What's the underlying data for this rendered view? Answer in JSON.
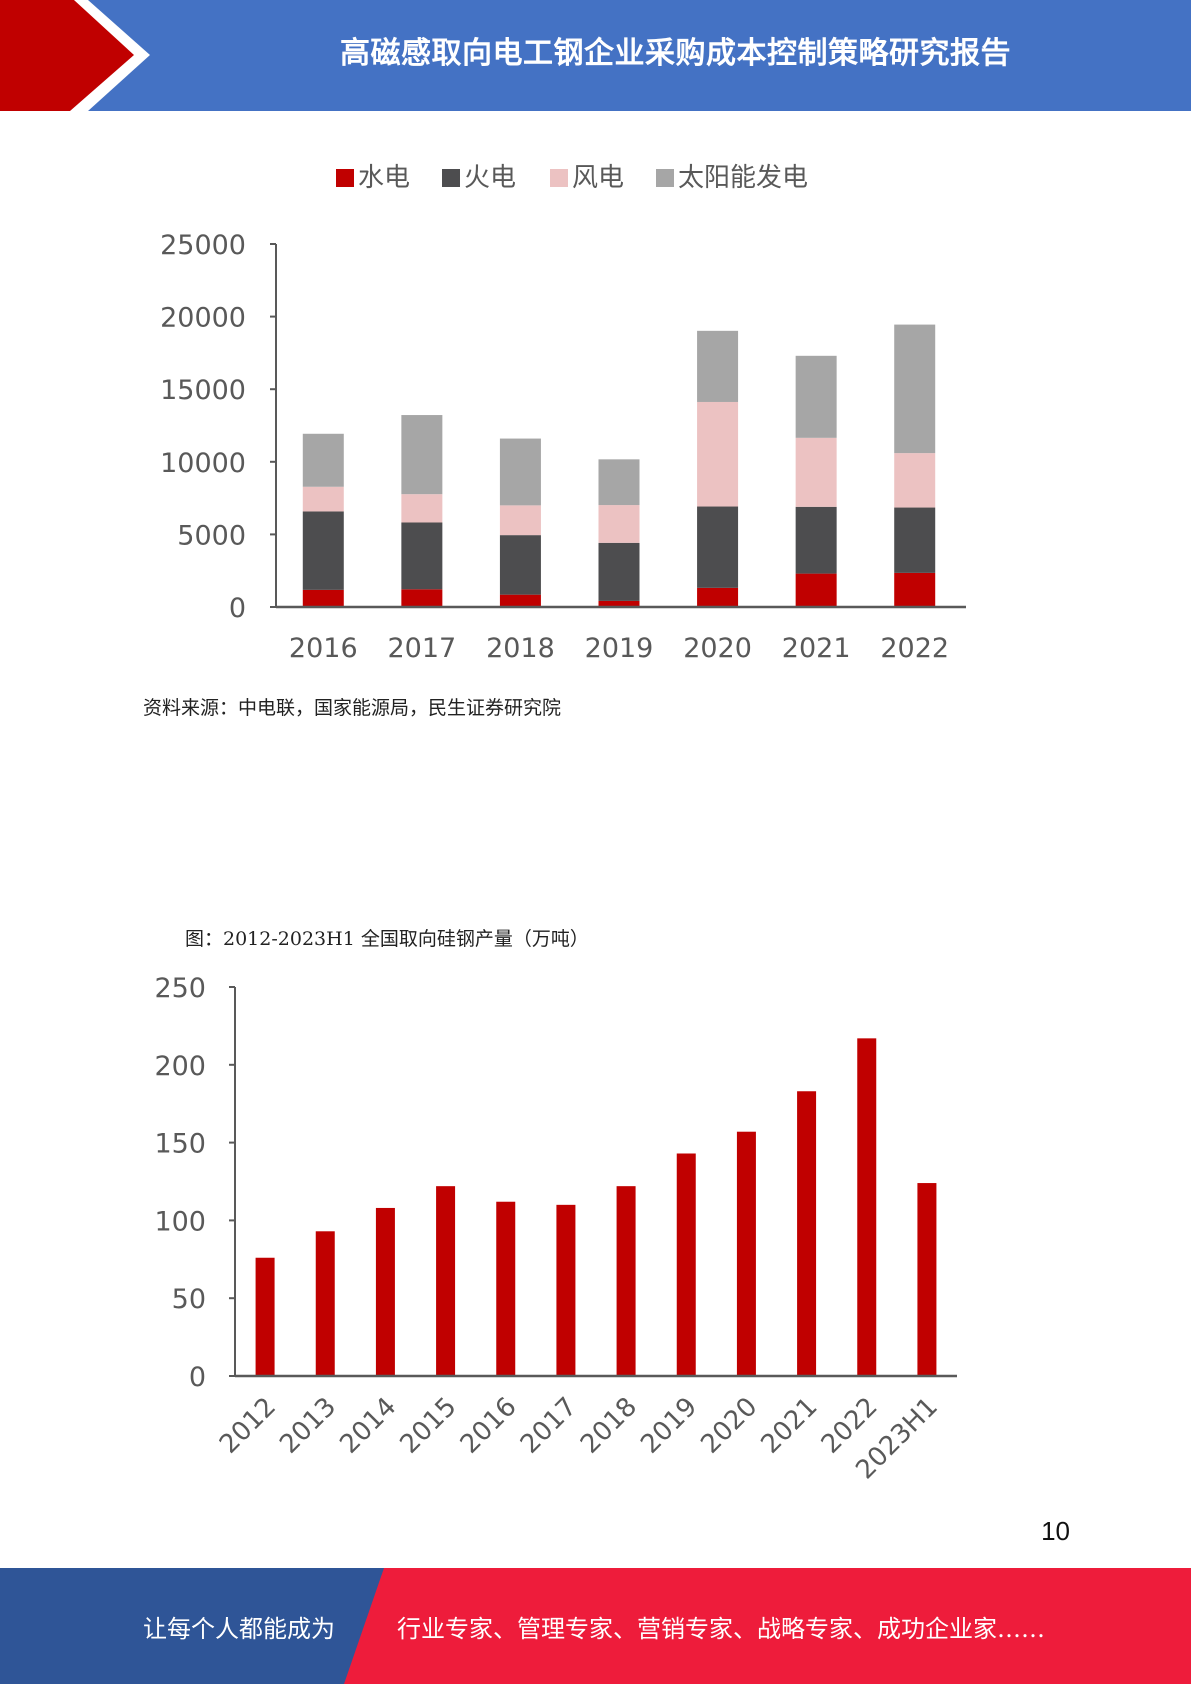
{
  "header": {
    "title": "高磁感取向电工钢企业采购成本控制策略研究报告"
  },
  "colors": {
    "header_blue": "#4472c4",
    "header_red": "#c00000",
    "footer_blue": "#2f5597",
    "footer_red": "#ee1c3b",
    "hydro": "#c00000",
    "thermal": "#4d4d4f",
    "wind": "#ecc2c2",
    "solar": "#a6a6a6"
  },
  "chart_data": [
    {
      "type": "bar",
      "stacked": true,
      "title": "",
      "xlabel": "",
      "ylabel": "",
      "categories": [
        "2016",
        "2017",
        "2018",
        "2019",
        "2020",
        "2021",
        "2022"
      ],
      "series": [
        {
          "name": "水电",
          "values": [
            1180,
            1220,
            850,
            420,
            1320,
            2300,
            2350
          ]
        },
        {
          "name": "火电",
          "values": [
            5400,
            4600,
            4100,
            4000,
            5600,
            4600,
            4500
          ]
        },
        {
          "name": "风电",
          "values": [
            1700,
            1950,
            2050,
            2600,
            7200,
            4750,
            3750
          ]
        },
        {
          "name": "太阳能发电",
          "values": [
            3650,
            5450,
            4600,
            3150,
            4900,
            5650,
            8850
          ]
        }
      ],
      "ylim": [
        0,
        25000
      ],
      "yticks": [
        "0",
        "5000",
        "10000",
        "15000",
        "20000",
        "25000"
      ],
      "legend": "top-center",
      "grid": false
    },
    {
      "type": "bar",
      "title": "图：2012-2023H1 全国取向硅钢产量（万吨）",
      "xlabel": "",
      "ylabel": "",
      "categories": [
        "2012",
        "2013",
        "2014",
        "2015",
        "2016",
        "2017",
        "2018",
        "2019",
        "2020",
        "2021",
        "2022",
        "2023H1"
      ],
      "values": [
        76,
        93,
        108,
        122,
        112,
        110,
        122,
        143,
        157,
        183,
        217,
        124
      ],
      "ylim": [
        0,
        250
      ],
      "yticks": [
        "0",
        "50",
        "100",
        "150",
        "200",
        "250"
      ],
      "legend": "none",
      "grid": false
    }
  ],
  "chart1_source": "资料来源：中电联，国家能源局，民生证券研究院",
  "page_number": "10",
  "footer": {
    "left_text": "让每个人都能成为",
    "right_text": "行业专家、管理专家、营销专家、战略专家、成功企业家……"
  }
}
